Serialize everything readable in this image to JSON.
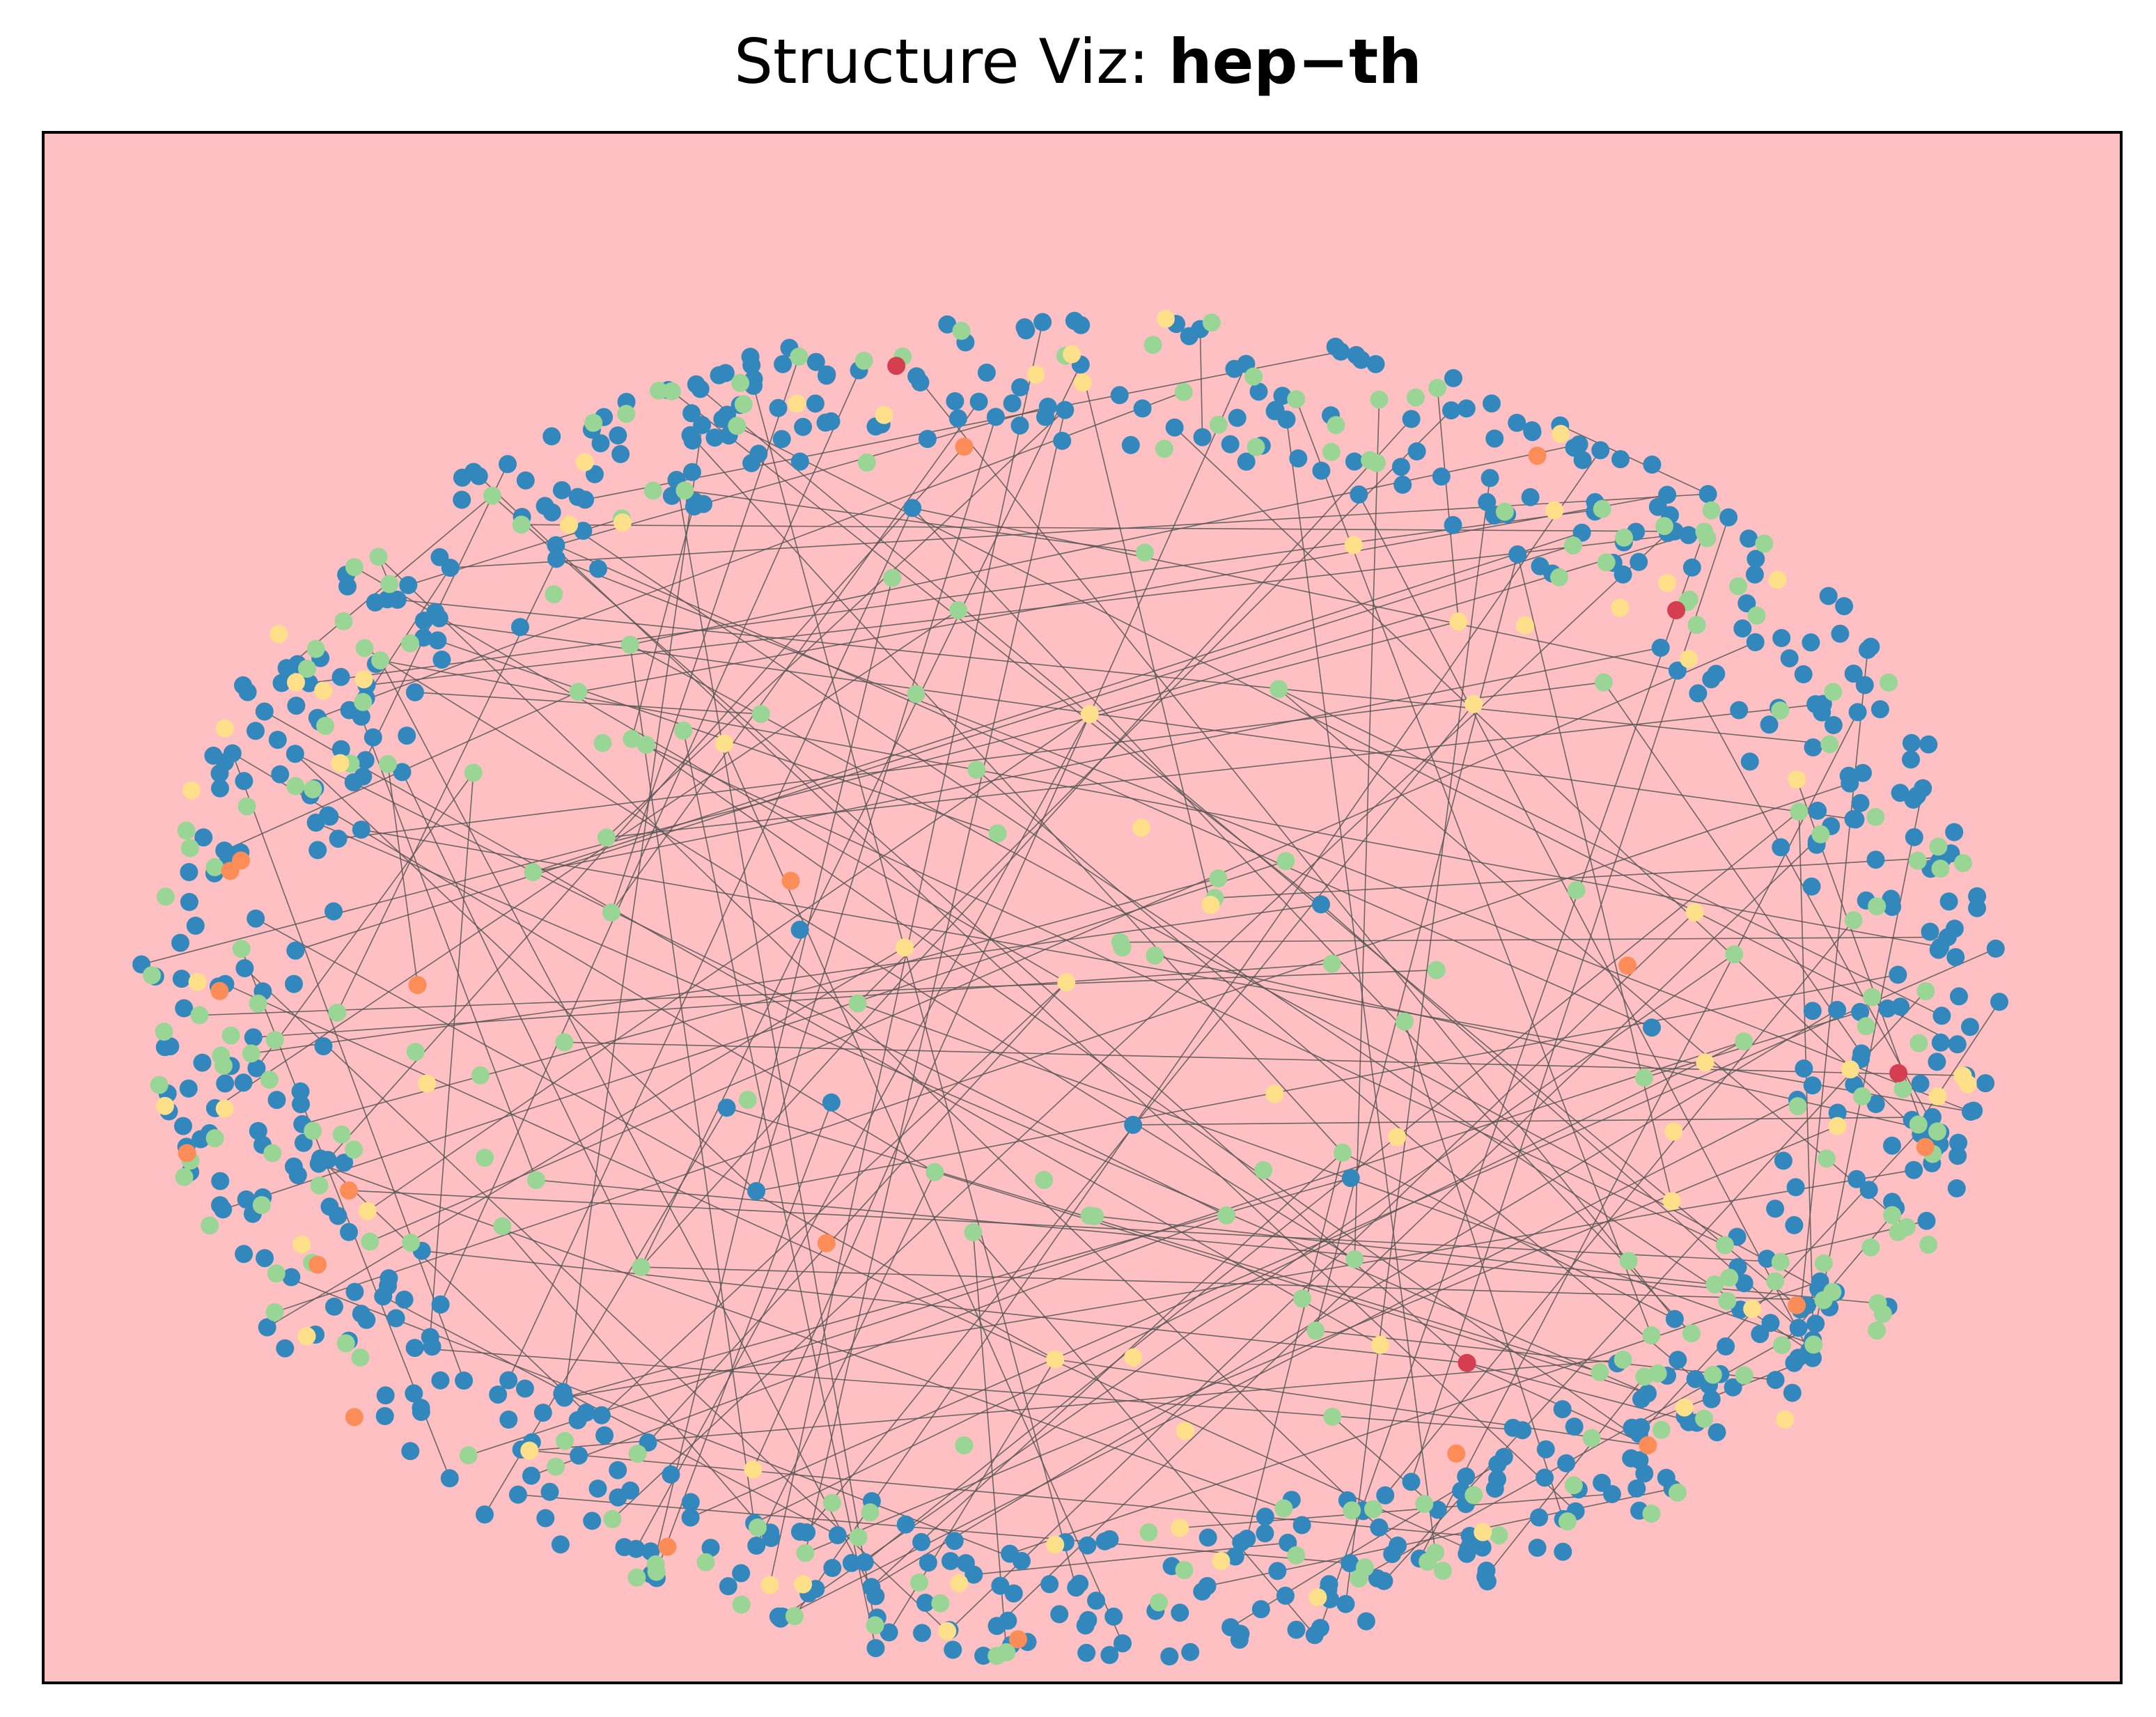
{
  "title": {
    "prefix": "Structure Viz: ",
    "dataset": "hep−th"
  },
  "colors": {
    "background": "#ffc0c3",
    "frame": "#000000",
    "edge": "#555555",
    "node_palette": [
      "#3288bd",
      "#99d594",
      "#fee08b",
      "#fc8d59",
      "#d53e4f"
    ]
  },
  "graph": {
    "layout": "spring-like, dense peripheral ring with sparse interior",
    "total_nodes": 1000,
    "edge_count": 195,
    "node_color_share": {
      "#3288bd": 0.72,
      "#99d594": 0.22,
      "#fee08b": 0.045,
      "#fc8d59": 0.01,
      "#d53e4f": 0.005
    }
  }
}
